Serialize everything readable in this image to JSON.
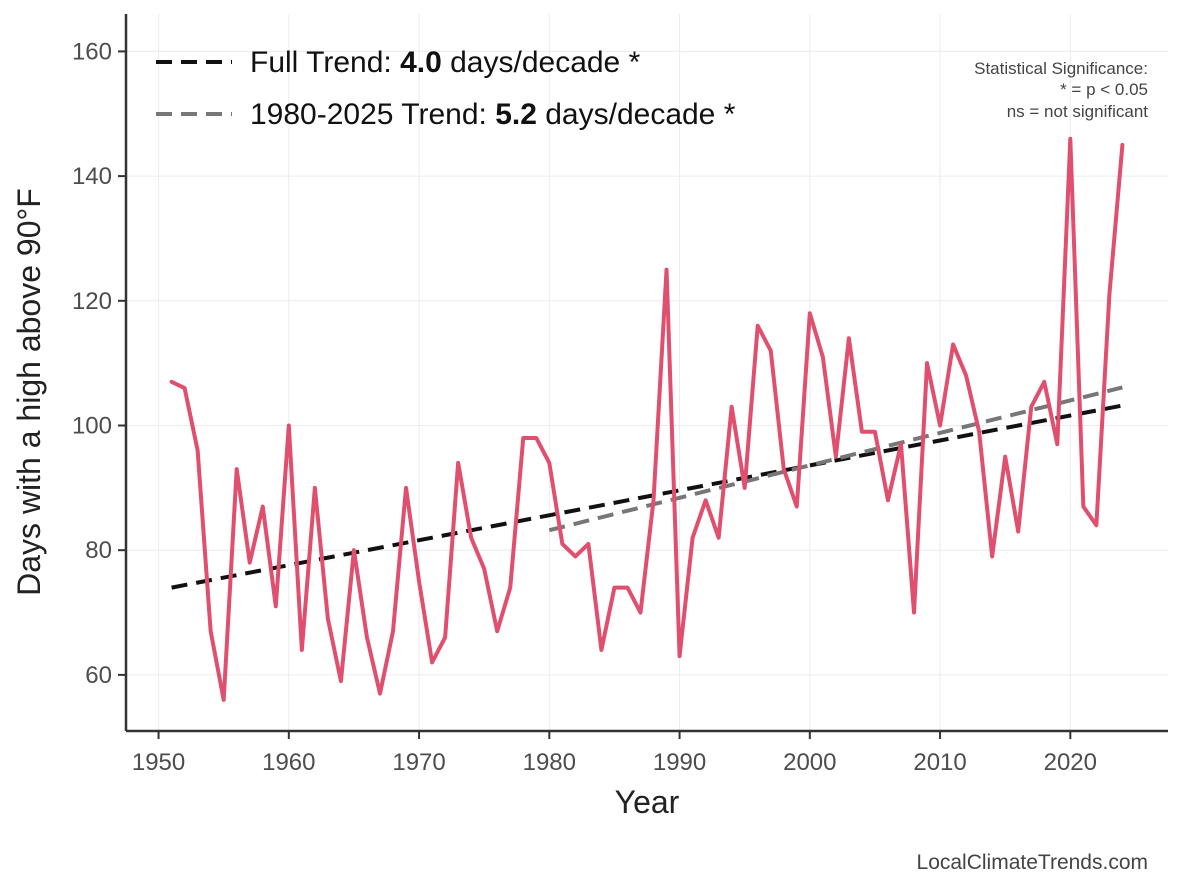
{
  "chart_data": {
    "type": "line",
    "xlabel": "Year",
    "ylabel": "Days with a high above 90°F",
    "xlim": [
      1947.5,
      2027.5
    ],
    "ylim": [
      51,
      166
    ],
    "x_ticks": [
      1950,
      1960,
      1970,
      1980,
      1990,
      2000,
      2010,
      2020
    ],
    "y_ticks": [
      60,
      80,
      100,
      120,
      140,
      160
    ],
    "grid": true,
    "series": [
      {
        "color": "#e0506e",
        "x": [
          1951,
          1952,
          1953,
          1954,
          1955,
          1956,
          1957,
          1958,
          1959,
          1960,
          1961,
          1962,
          1963,
          1964,
          1965,
          1966,
          1967,
          1968,
          1969,
          1970,
          1971,
          1972,
          1973,
          1974,
          1975,
          1976,
          1977,
          1978,
          1979,
          1980,
          1981,
          1982,
          1983,
          1984,
          1985,
          1986,
          1987,
          1988,
          1989,
          1990,
          1991,
          1992,
          1993,
          1994,
          1995,
          1996,
          1997,
          1998,
          1999,
          2000,
          2001,
          2002,
          2003,
          2004,
          2005,
          2006,
          2007,
          2008,
          2009,
          2010,
          2011,
          2012,
          2013,
          2014,
          2015,
          2016,
          2017,
          2018,
          2019,
          2020,
          2021,
          2022,
          2023,
          2024
        ],
        "values": [
          107,
          106,
          96,
          67,
          56,
          93,
          78,
          87,
          71,
          100,
          64,
          90,
          69,
          59,
          80,
          66,
          57,
          67,
          90,
          75,
          62,
          66,
          94,
          82,
          77,
          67,
          74,
          98,
          98,
          94,
          81,
          79,
          81,
          64,
          74,
          74,
          70,
          88,
          125,
          63,
          82,
          88,
          82,
          103,
          90,
          116,
          112,
          93,
          87,
          118,
          111,
          95,
          114,
          99,
          99,
          88,
          97,
          70,
          110,
          100,
          113,
          108,
          99,
          79,
          95,
          83,
          103,
          107,
          97,
          146,
          87,
          84,
          121,
          145
        ]
      }
    ],
    "trend_lines": [
      {
        "name_prefix": "Full Trend: ",
        "rate": "4.0",
        "name_suffix": " days/decade *",
        "color": "#111111",
        "x": [
          1951,
          2024
        ],
        "values": [
          74.0,
          103.2
        ]
      },
      {
        "name_prefix": "1980-2025 Trend: ",
        "rate": "5.2",
        "name_suffix": " days/decade *",
        "color": "#777777",
        "x": [
          1980,
          2024
        ],
        "values": [
          83.2,
          106.1
        ]
      }
    ],
    "legend_position": "top-left",
    "significance_note": [
      "Statistical Significance:",
      "* = p < 0.05",
      "ns = not significant"
    ],
    "credit": "LocalClimateTrends.com"
  }
}
